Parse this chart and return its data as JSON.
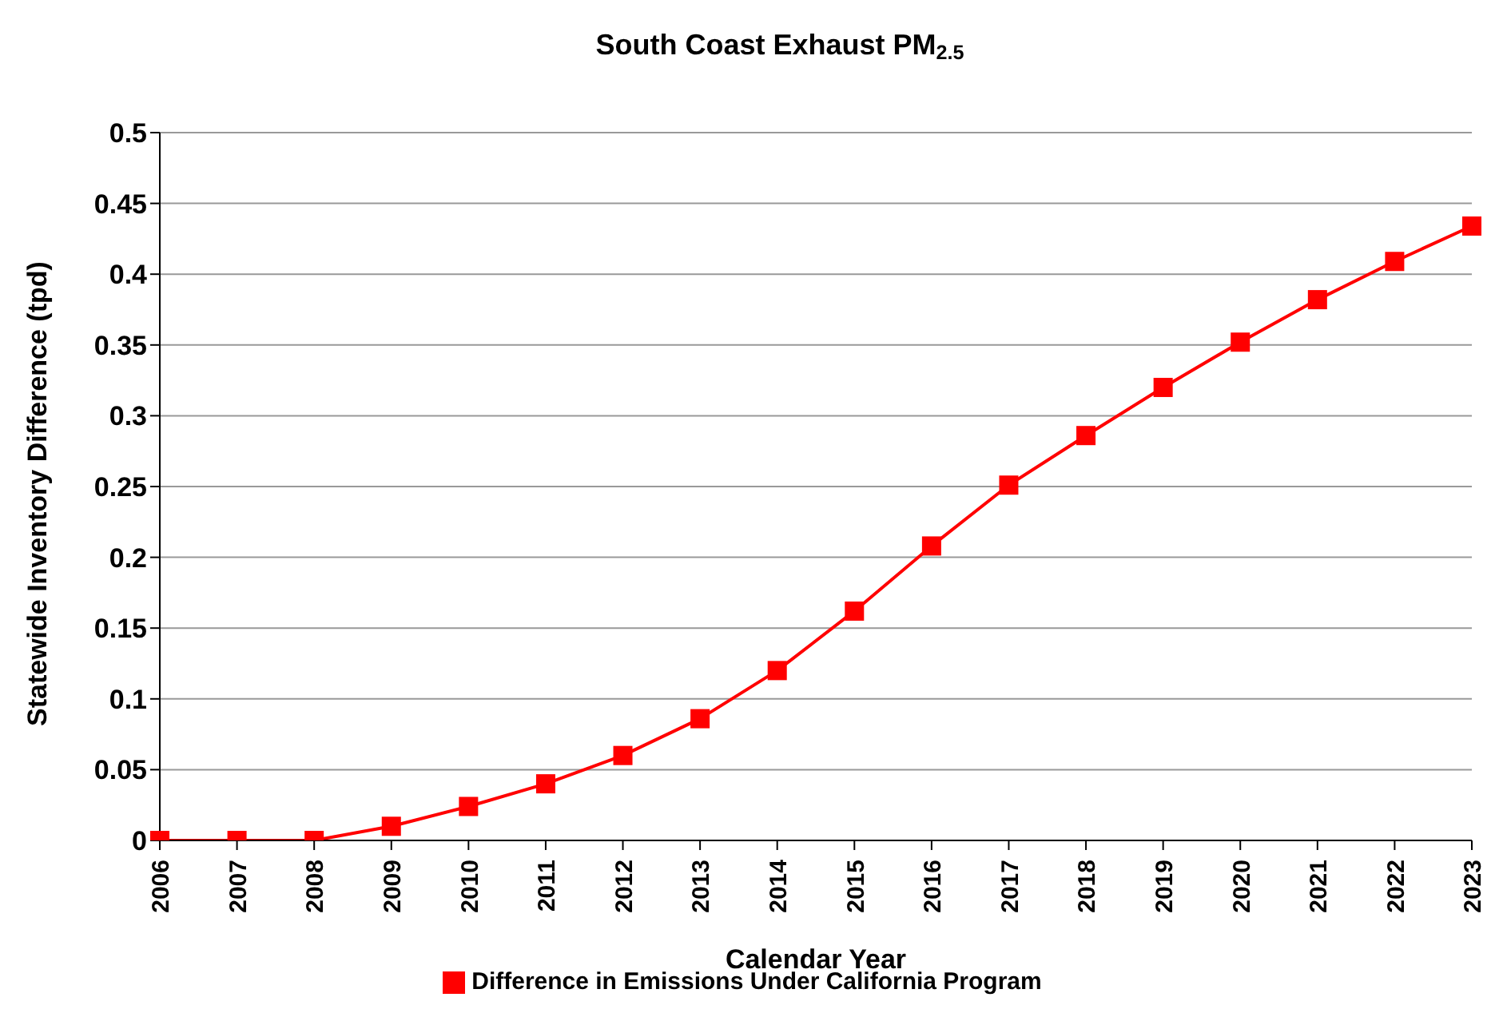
{
  "chart_data": {
    "type": "line",
    "title": "South Coast Exhaust PM$_{2.5}$",
    "xlabel": "Calendar Year",
    "ylabel": "Statewide Inventory Difference (tpd)",
    "categories": [
      "2006",
      "2007",
      "2008",
      "2009",
      "2010",
      "2011",
      "2012",
      "2013",
      "2014",
      "2015",
      "2016",
      "2017",
      "2018",
      "2019",
      "2020",
      "2021",
      "2022",
      "2023"
    ],
    "series": [
      {
        "name": "Difference in Emissions Under California Program",
        "color": "#ff0000",
        "values": [
          0,
          0,
          0,
          0.01,
          0.024,
          0.04,
          0.06,
          0.086,
          0.12,
          0.162,
          0.208,
          0.251,
          0.286,
          0.32,
          0.352,
          0.382,
          0.409,
          0.434
        ]
      }
    ],
    "ylim": [
      0,
      0.5
    ],
    "yticks": [
      0,
      0.05,
      0.1,
      0.15,
      0.2,
      0.25,
      0.3,
      0.35,
      0.4,
      0.45,
      0.5
    ],
    "grid": "y",
    "legend": "bottom",
    "marker": "square",
    "line_style": "solid"
  }
}
